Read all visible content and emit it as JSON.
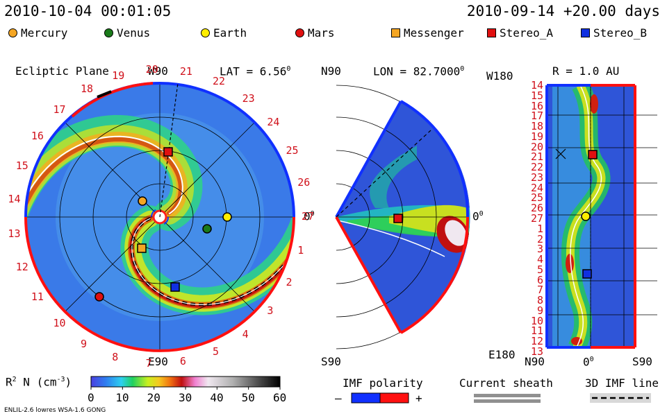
{
  "header": {
    "datetime": "2010-10-04 00:01:05",
    "forecast": "2010-09-14 +20.00 days"
  },
  "legend": [
    {
      "label": "Mercury",
      "shape": "circle",
      "color": "#f5a623"
    },
    {
      "label": "Venus",
      "shape": "circle",
      "color": "#1a7a1a"
    },
    {
      "label": "Earth",
      "shape": "circle",
      "color": "#ffee00"
    },
    {
      "label": "Mars",
      "shape": "circle",
      "color": "#e01010"
    },
    {
      "label": "Messenger",
      "shape": "square",
      "color": "#f5a623"
    },
    {
      "label": "Stereo_A",
      "shape": "square",
      "color": "#e01010"
    },
    {
      "label": "Stereo_B",
      "shape": "square",
      "color": "#1030e0"
    }
  ],
  "panels": {
    "ecliptic": {
      "title": "Ecliptic Plane",
      "top": "W90",
      "lat_label": "LAT = 6.56",
      "lat_deg": "0",
      "right": "0",
      "right_deg": "0",
      "bottom": "E90"
    },
    "meridional": {
      "top": "N90",
      "lon_label": "LON = 82.7000",
      "lon_deg": "0",
      "right": "0",
      "right_deg": "0",
      "bottom": "S90"
    },
    "sphere": {
      "title": "R = 1.0 AU",
      "top_left": "W180",
      "bottom_left": "E180",
      "bottom_n": "N90",
      "bottom_zero": "0",
      "bottom_zero_deg": "0",
      "bottom_s": "S90"
    }
  },
  "colorbar": {
    "label": "R",
    "label_sup": "2",
    "label_rest": " N (cm",
    "label_exp": "-3",
    "label_close": ")",
    "ticks": [
      "0",
      "10",
      "20",
      "30",
      "40",
      "50",
      "60"
    ]
  },
  "keys": {
    "imf_polarity": "IMF polarity",
    "minus": "–",
    "plus": "+",
    "current_sheath": "Current sheath",
    "imf_line": "3D IMF line"
  },
  "footer": {
    "credit": "ENLIL-2.6 lowres WSA-1.6 GONG"
  },
  "chart_data": {
    "type": "heatmap",
    "quantity": "R^2 N (cm^-3)",
    "color_range": [
      0,
      60
    ],
    "carrington_rotation_ticks": [
      "19",
      "20",
      "21",
      "22",
      "23",
      "24",
      "25",
      "26",
      "27",
      "1",
      "2",
      "3",
      "4",
      "5",
      "6",
      "7",
      "8",
      "9",
      "10",
      "11",
      "12",
      "13",
      "14",
      "15",
      "16",
      "17",
      "18"
    ],
    "sphere_lat_ticks": [
      "14",
      "15",
      "16",
      "17",
      "18",
      "19",
      "20",
      "21",
      "22",
      "23",
      "24",
      "25",
      "26",
      "27",
      "1",
      "2",
      "3",
      "4",
      "5",
      "6",
      "7",
      "8",
      "9",
      "10",
      "11",
      "12",
      "13"
    ]
  }
}
